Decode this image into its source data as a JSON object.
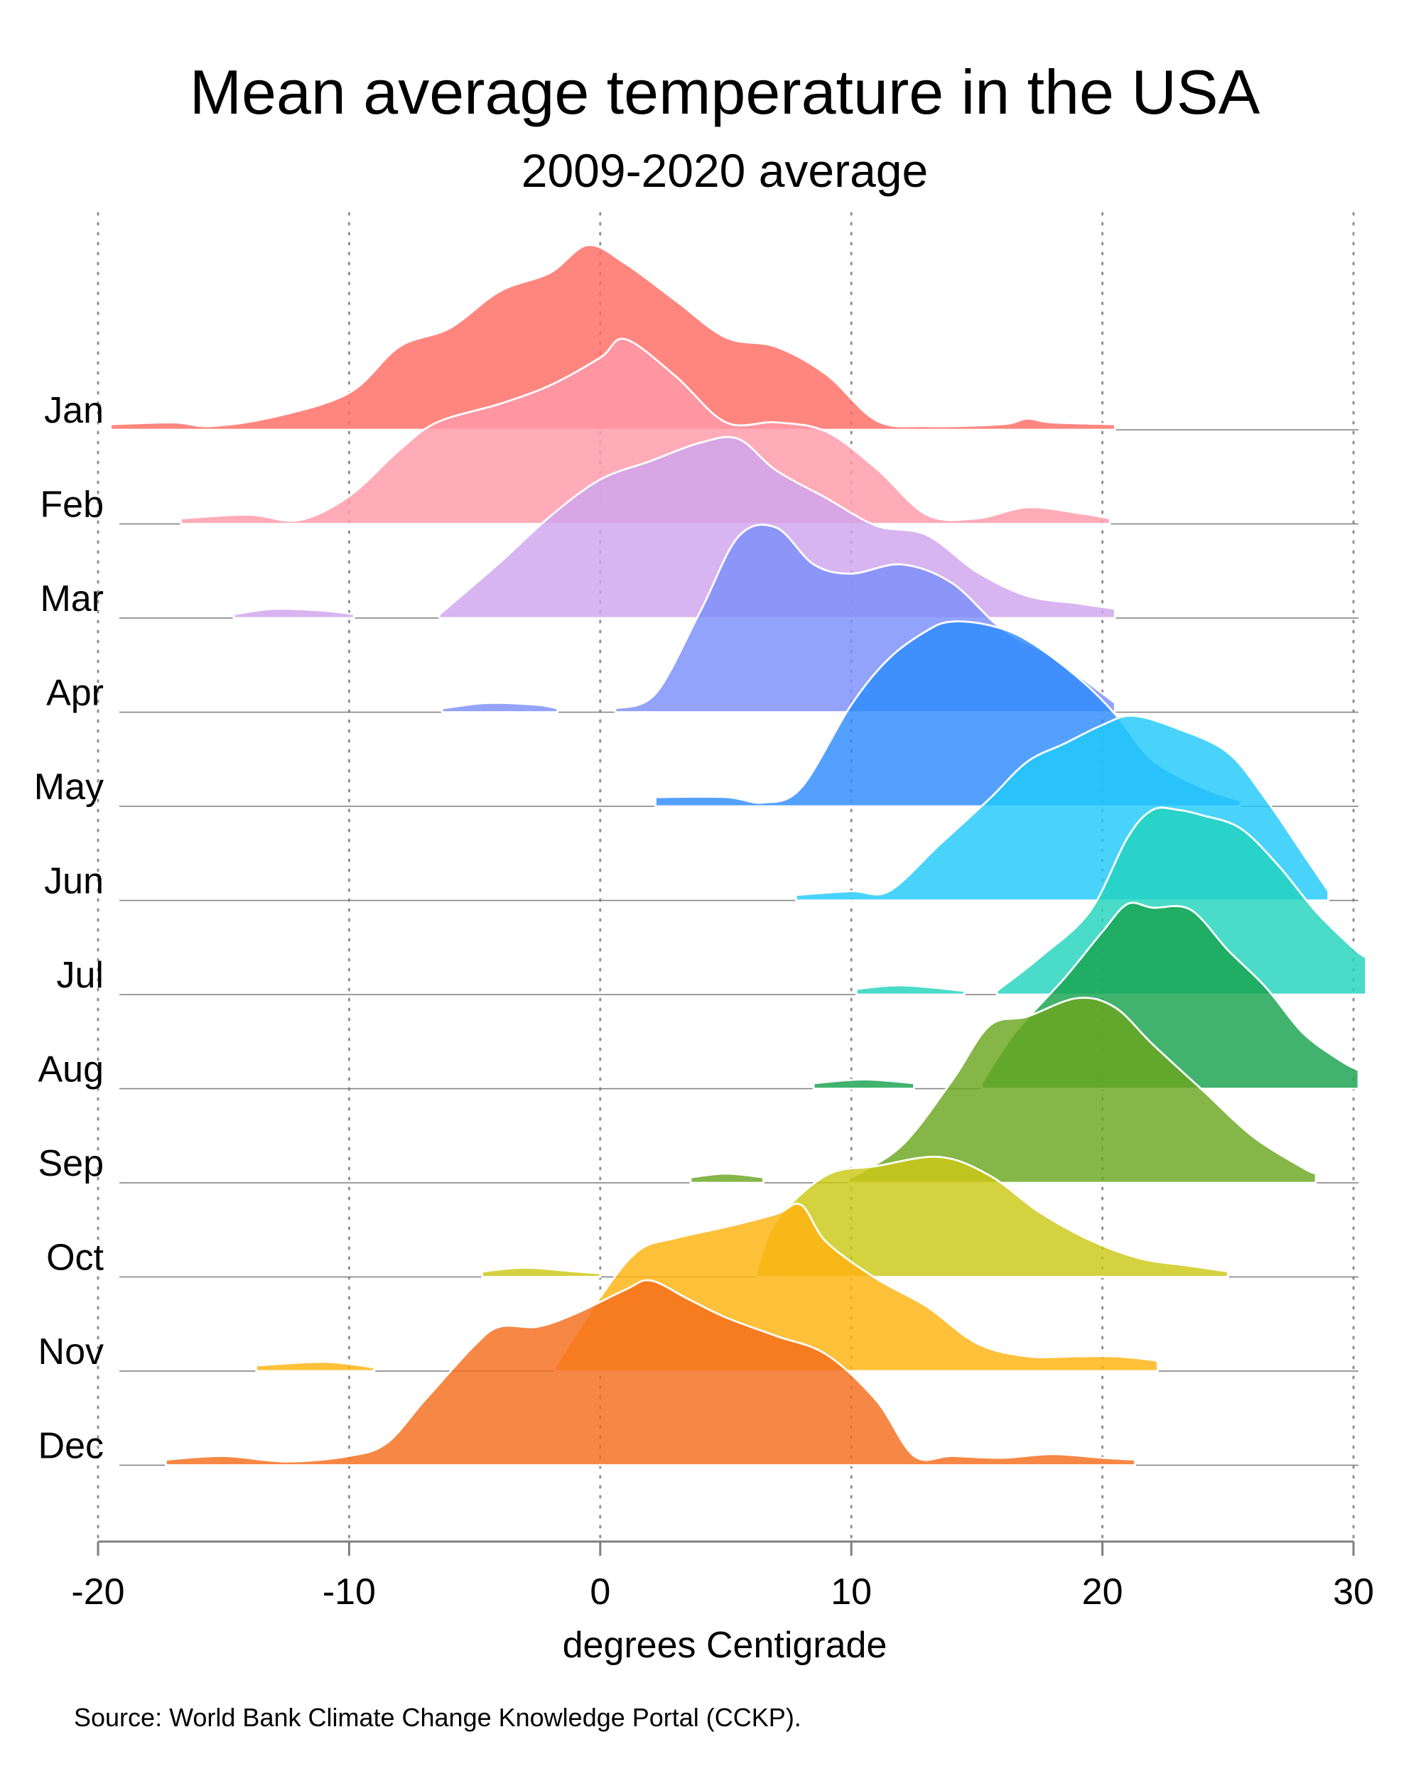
{
  "chart_data": {
    "type": "area",
    "title": "Mean average temperature in the USA",
    "subtitle": "2009-2020 average",
    "xlabel": "degrees Centigrade",
    "ylabel": "",
    "xlim": [
      -20,
      30
    ],
    "x_ticks": [
      -20,
      -10,
      0,
      10,
      20,
      30
    ],
    "x_tick_labels": [
      "-20",
      "-10",
      "0",
      "10",
      "20",
      "30"
    ],
    "gridlines_x": [
      -20,
      -10,
      0,
      10,
      20,
      30
    ],
    "grid": "vertical dotted",
    "legend": "none",
    "source": "Source: World Bank Climate Change Knowledge Portal (CCKP).",
    "series": [
      {
        "name": "Jan",
        "color": "#ff6b63",
        "points": [
          [
            -19.5,
            0.03
          ],
          [
            -17,
            0.04
          ],
          [
            -15.5,
            0.02
          ],
          [
            -13,
            0.07
          ],
          [
            -10,
            0.2
          ],
          [
            -8,
            0.45
          ],
          [
            -6,
            0.55
          ],
          [
            -4,
            0.75
          ],
          [
            -2,
            0.85
          ],
          [
            -0.5,
            1.0
          ],
          [
            1,
            0.9
          ],
          [
            3,
            0.7
          ],
          [
            5,
            0.5
          ],
          [
            7,
            0.45
          ],
          [
            9,
            0.3
          ],
          [
            11,
            0.05
          ],
          [
            13,
            0.02
          ],
          [
            16,
            0.03
          ],
          [
            17,
            0.06
          ],
          [
            18,
            0.04
          ],
          [
            20.5,
            0.03
          ]
        ]
      },
      {
        "name": "Feb",
        "color": "#ff9aa8",
        "points": [
          [
            -16.7,
            0.03
          ],
          [
            -14,
            0.05
          ],
          [
            -12,
            0.02
          ],
          [
            -10,
            0.15
          ],
          [
            -8,
            0.4
          ],
          [
            -6.5,
            0.55
          ],
          [
            -4,
            0.65
          ],
          [
            -2,
            0.75
          ],
          [
            0,
            0.9
          ],
          [
            1,
            1.0
          ],
          [
            3,
            0.8
          ],
          [
            5,
            0.55
          ],
          [
            7,
            0.55
          ],
          [
            9,
            0.5
          ],
          [
            11,
            0.3
          ],
          [
            13,
            0.05
          ],
          [
            15,
            0.03
          ],
          [
            17,
            0.09
          ],
          [
            19,
            0.06
          ],
          [
            20.3,
            0.03
          ]
        ]
      },
      {
        "name": "Mar",
        "color": "#d0a5ee",
        "segments": [
          [
            [
              -14.6,
              0.02
            ],
            [
              -13,
              0.05
            ],
            [
              -11,
              0.04
            ],
            [
              -9.8,
              0.02
            ]
          ],
          [
            [
              -6.4,
              0.02
            ],
            [
              -4,
              0.3
            ],
            [
              -2,
              0.55
            ],
            [
              0,
              0.75
            ],
            [
              2,
              0.85
            ],
            [
              4,
              0.95
            ],
            [
              5.5,
              0.97
            ],
            [
              7,
              0.8
            ],
            [
              9,
              0.65
            ],
            [
              11,
              0.5
            ],
            [
              13,
              0.45
            ],
            [
              15,
              0.25
            ],
            [
              17,
              0.12
            ],
            [
              19,
              0.08
            ],
            [
              20.5,
              0.05
            ]
          ]
        ]
      },
      {
        "name": "Apr",
        "color": "#7b8df9",
        "segments": [
          [
            [
              -6.3,
              0.02
            ],
            [
              -4.5,
              0.05
            ],
            [
              -2.5,
              0.04
            ],
            [
              -1.7,
              0.02
            ]
          ],
          [
            [
              0.6,
              0.02
            ],
            [
              2.2,
              0.1
            ],
            [
              4,
              0.55
            ],
            [
              5.5,
              0.95
            ],
            [
              7,
              1.0
            ],
            [
              8.5,
              0.8
            ],
            [
              10,
              0.75
            ],
            [
              12,
              0.8
            ],
            [
              14,
              0.7
            ],
            [
              16,
              0.45
            ],
            [
              18,
              0.3
            ],
            [
              20.5,
              0.05
            ]
          ]
        ]
      },
      {
        "name": "May",
        "color": "#2e8bff",
        "points": [
          [
            2.2,
            0.05
          ],
          [
            5,
            0.05
          ],
          [
            6.5,
            0.02
          ],
          [
            8,
            0.1
          ],
          [
            10,
            0.55
          ],
          [
            11.5,
            0.8
          ],
          [
            13,
            0.95
          ],
          [
            14,
            1.0
          ],
          [
            15.5,
            0.98
          ],
          [
            17,
            0.9
          ],
          [
            19,
            0.7
          ],
          [
            20.5,
            0.5
          ],
          [
            22,
            0.25
          ],
          [
            24,
            0.1
          ],
          [
            25.5,
            0.03
          ]
        ]
      },
      {
        "name": "Jun",
        "color": "#21c9fa",
        "points": [
          [
            7.8,
            0.03
          ],
          [
            10,
            0.05
          ],
          [
            11.5,
            0.05
          ],
          [
            13.5,
            0.3
          ],
          [
            15.5,
            0.55
          ],
          [
            17,
            0.75
          ],
          [
            18.5,
            0.85
          ],
          [
            20,
            0.95
          ],
          [
            21.2,
            1.0
          ],
          [
            23,
            0.93
          ],
          [
            25,
            0.8
          ],
          [
            26.5,
            0.55
          ],
          [
            28,
            0.25
          ],
          [
            29,
            0.05
          ]
        ]
      },
      {
        "name": "Jul",
        "color": "#22d3bd",
        "segments": [
          [
            [
              10.2,
              0.03
            ],
            [
              12,
              0.05
            ],
            [
              14.5,
              0.02
            ]
          ],
          [
            [
              15.8,
              0.02
            ],
            [
              17.5,
              0.2
            ],
            [
              19.5,
              0.45
            ],
            [
              21,
              0.85
            ],
            [
              22,
              1.0
            ],
            [
              23,
              1.0
            ],
            [
              24,
              0.97
            ],
            [
              25.5,
              0.9
            ],
            [
              27,
              0.7
            ],
            [
              28.5,
              0.45
            ],
            [
              30,
              0.25
            ],
            [
              30.5,
              0.2
            ]
          ]
        ]
      },
      {
        "name": "Aug",
        "color": "#17a24e",
        "segments": [
          [
            [
              8.5,
              0.03
            ],
            [
              10.5,
              0.05
            ],
            [
              12.5,
              0.03
            ]
          ],
          [
            [
              15.2,
              0.03
            ],
            [
              16.5,
              0.3
            ],
            [
              18.5,
              0.6
            ],
            [
              20,
              0.85
            ],
            [
              21,
              1.0
            ],
            [
              22,
              0.98
            ],
            [
              23.5,
              0.97
            ],
            [
              25,
              0.75
            ],
            [
              26.5,
              0.55
            ],
            [
              28,
              0.3
            ],
            [
              29.5,
              0.15
            ],
            [
              30.2,
              0.1
            ]
          ]
        ]
      },
      {
        "name": "Sep",
        "color": "#6aa61f",
        "segments": [
          [
            [
              3.6,
              0.03
            ],
            [
              5,
              0.05
            ],
            [
              6.5,
              0.03
            ]
          ],
          [
            [
              9.9,
              0.02
            ],
            [
              12,
              0.2
            ],
            [
              14,
              0.55
            ],
            [
              15.5,
              0.85
            ],
            [
              17,
              0.9
            ],
            [
              19,
              1.0
            ],
            [
              20.5,
              0.95
            ],
            [
              22,
              0.75
            ],
            [
              24,
              0.5
            ],
            [
              26,
              0.25
            ],
            [
              28,
              0.08
            ],
            [
              28.5,
              0.05
            ]
          ]
        ]
      },
      {
        "name": "Oct",
        "color": "#ccc815",
        "segments": [
          [
            [
              -4.7,
              0.03
            ],
            [
              -3,
              0.05
            ],
            [
              -1,
              0.03
            ],
            [
              0,
              0.02
            ]
          ],
          [
            [
              6.2,
              0.02
            ],
            [
              7,
              0.3
            ],
            [
              9,
              0.55
            ],
            [
              11,
              0.6
            ],
            [
              13.5,
              0.65
            ],
            [
              15.5,
              0.55
            ],
            [
              17.5,
              0.35
            ],
            [
              19.5,
              0.2
            ],
            [
              21.5,
              0.1
            ],
            [
              23.5,
              0.06
            ],
            [
              25,
              0.03
            ]
          ]
        ]
      },
      {
        "name": "Nov",
        "color": "#ffb20f",
        "segments": [
          [
            [
              -13.7,
              0.03
            ],
            [
              -11,
              0.05
            ],
            [
              -9,
              0.02
            ]
          ],
          [
            [
              -1.8,
              0.02
            ],
            [
              0,
              0.4
            ],
            [
              1.5,
              0.65
            ],
            [
              3,
              0.72
            ],
            [
              5,
              0.78
            ],
            [
              7,
              0.85
            ],
            [
              8,
              0.9
            ],
            [
              9,
              0.7
            ],
            [
              11,
              0.5
            ],
            [
              13,
              0.35
            ],
            [
              15,
              0.15
            ],
            [
              17,
              0.08
            ],
            [
              19,
              0.08
            ],
            [
              20.5,
              0.08
            ],
            [
              22,
              0.06
            ],
            [
              22.2,
              0.05
            ]
          ]
        ]
      },
      {
        "name": "Dec",
        "color": "#f56d1b",
        "points": [
          [
            -17.3,
            0.03
          ],
          [
            -15,
            0.05
          ],
          [
            -12.5,
            0.02
          ],
          [
            -10,
            0.05
          ],
          [
            -8.5,
            0.12
          ],
          [
            -7,
            0.35
          ],
          [
            -5,
            0.65
          ],
          [
            -4,
            0.75
          ],
          [
            -2.5,
            0.75
          ],
          [
            -1,
            0.82
          ],
          [
            1,
            0.95
          ],
          [
            2,
            1.0
          ],
          [
            3.5,
            0.9
          ],
          [
            5,
            0.8
          ],
          [
            7,
            0.7
          ],
          [
            9,
            0.6
          ],
          [
            11,
            0.35
          ],
          [
            12.5,
            0.05
          ],
          [
            14,
            0.05
          ],
          [
            16,
            0.04
          ],
          [
            18,
            0.06
          ],
          [
            20,
            0.04
          ],
          [
            21.3,
            0.03
          ]
        ]
      }
    ]
  }
}
